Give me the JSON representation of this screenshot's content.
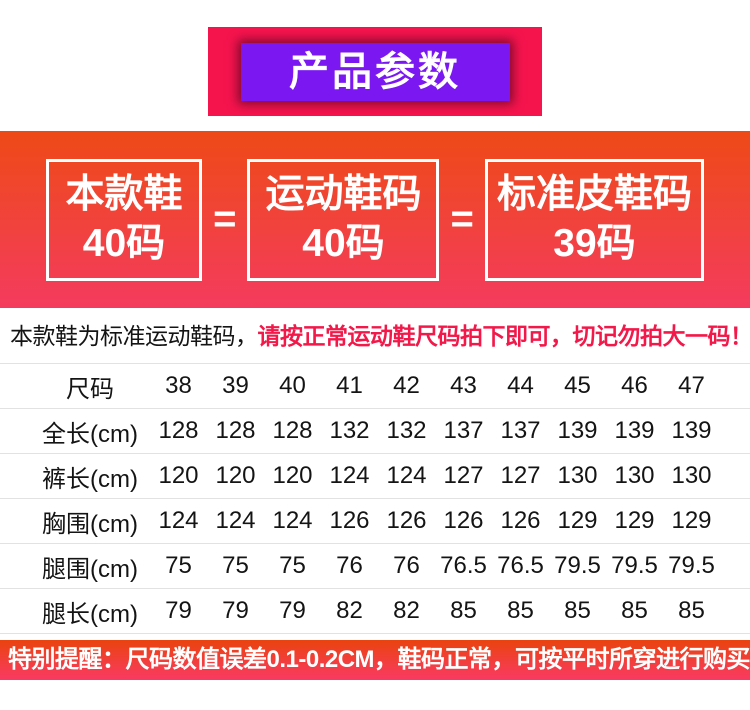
{
  "header": {
    "title": "产品参数"
  },
  "equivalence": {
    "equals_sign": "=",
    "boxes": [
      {
        "line1": "本款鞋",
        "line2": "40码"
      },
      {
        "line1": "运动鞋码",
        "line2": "40码"
      },
      {
        "line1": "标准皮鞋码",
        "line2": "39码"
      }
    ]
  },
  "notice": {
    "prefix": "本款鞋为标准运动鞋码，",
    "warning": "请按正常运动鞋尺码拍下即可，切记勿拍大一码！"
  },
  "size_table": {
    "header_label": "尺码",
    "sizes": [
      "38",
      "39",
      "40",
      "41",
      "42",
      "43",
      "44",
      "45",
      "46",
      "47"
    ],
    "rows": [
      {
        "label": "全长(cm)",
        "values": [
          "128",
          "128",
          "128",
          "132",
          "132",
          "137",
          "137",
          "139",
          "139",
          "139"
        ]
      },
      {
        "label": "裤长(cm)",
        "values": [
          "120",
          "120",
          "120",
          "124",
          "124",
          "127",
          "127",
          "130",
          "130",
          "130"
        ]
      },
      {
        "label": "胸围(cm)",
        "values": [
          "124",
          "124",
          "124",
          "126",
          "126",
          "126",
          "126",
          "129",
          "129",
          "129"
        ]
      },
      {
        "label": "腿围(cm)",
        "values": [
          "75",
          "75",
          "75",
          "76",
          "76",
          "76.5",
          "76.5",
          "79.5",
          "79.5",
          "79.5"
        ]
      },
      {
        "label": "腿长(cm)",
        "values": [
          "79",
          "79",
          "79",
          "82",
          "82",
          "85",
          "85",
          "85",
          "85",
          "85"
        ]
      }
    ]
  },
  "footer": {
    "reminder": "特别提醒：尺码数值误差0.1-0.2CM，鞋码正常，可按平时所穿进行购买"
  },
  "colors": {
    "banner_red": "#f6144d",
    "title_purple": "#7b18f2",
    "section_gradient_top": "#ee4a17",
    "section_gradient_bottom": "#f43b5e",
    "warning_text_red": "#f2194a",
    "table_line_gray": "#e2e2e2",
    "text_black": "#141414",
    "text_white": "#ffffff"
  }
}
